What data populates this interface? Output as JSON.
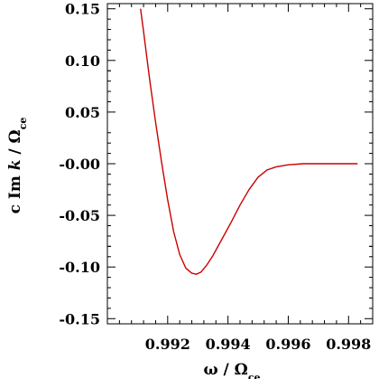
{
  "chart_data": {
    "type": "line",
    "xlim": [
      0.99,
      0.9988
    ],
    "ylim": [
      -0.155,
      0.155
    ],
    "grid": false,
    "legend": "none",
    "xticks": [
      0.992,
      0.994,
      0.996,
      0.998
    ],
    "xtick_labels": [
      "0.992",
      "0.994",
      "0.996",
      "0.998"
    ],
    "yticks": [
      0.15,
      0.1,
      0.05,
      0.0,
      -0.05,
      -0.1,
      -0.15
    ],
    "ytick_labels": [
      "0.15",
      "0.10",
      "0.05",
      "-0.00",
      "-0.05",
      "-0.10",
      "-0.15"
    ],
    "xlabel": {
      "main": "ω  /  Ω",
      "sub": "ce"
    },
    "ylabel": {
      "prefix": "c  Im ",
      "italic": "k",
      "middle": "  /  Ω",
      "sub": "ce"
    },
    "series": [
      {
        "color": "#cc0000",
        "x": [
          0.9911,
          0.9912,
          0.9914,
          0.9916,
          0.9918,
          0.992,
          0.9922,
          0.9924,
          0.9926,
          0.9928,
          0.99295,
          0.9931,
          0.9933,
          0.9935,
          0.9938,
          0.9941,
          0.9944,
          0.9947,
          0.995,
          0.9953,
          0.9956,
          0.996,
          0.9965,
          0.997,
          0.9975,
          0.998,
          0.9983
        ],
        "y": [
          0.15,
          0.128,
          0.082,
          0.04,
          0.001,
          -0.035,
          -0.066,
          -0.088,
          -0.101,
          -0.106,
          -0.107,
          -0.105,
          -0.098,
          -0.089,
          -0.073,
          -0.057,
          -0.04,
          -0.025,
          -0.013,
          -0.006,
          -0.003,
          -0.001,
          0.0,
          0.0,
          0.0,
          0.0,
          0.0
        ]
      }
    ]
  }
}
